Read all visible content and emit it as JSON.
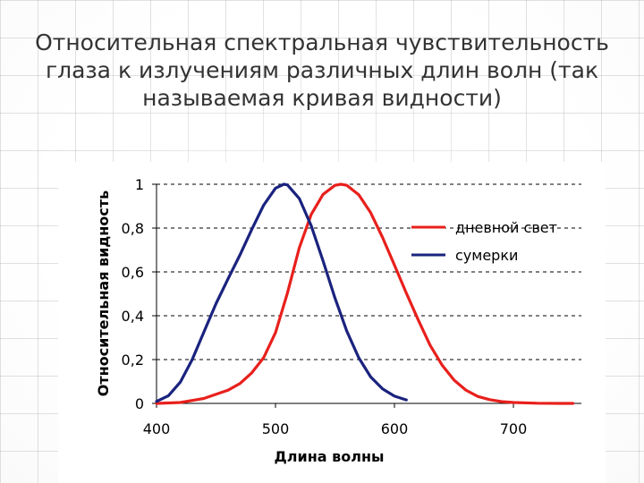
{
  "slide": {
    "title": "Относительная спектральная чувствительность глаза к излучениям различных длин волн (так называемая кривая видности)"
  },
  "chart_data": {
    "type": "line",
    "title": "",
    "xlabel": "Длина волны",
    "ylabel": "Относительная видность",
    "xlim": [
      400,
      750
    ],
    "ylim": [
      0,
      1
    ],
    "x_ticks": [
      400,
      500,
      600,
      700
    ],
    "y_ticks": [
      0,
      0.2,
      0.4,
      0.6,
      0.8,
      1
    ],
    "y_tick_labels": [
      "0",
      "0,2",
      "0,4",
      "0,6",
      "0,8",
      "1"
    ],
    "grid": "horizontal dashed",
    "legend_position": "right",
    "series": [
      {
        "name": "дневной свет",
        "color": "#e8201c",
        "x": [
          400,
          420,
          440,
          460,
          470,
          480,
          490,
          500,
          510,
          520,
          530,
          540,
          550,
          555,
          560,
          570,
          580,
          590,
          600,
          610,
          620,
          630,
          640,
          650,
          660,
          670,
          680,
          690,
          700,
          720,
          740,
          750
        ],
        "y": [
          0,
          0.004,
          0.023,
          0.06,
          0.09,
          0.139,
          0.208,
          0.323,
          0.503,
          0.71,
          0.862,
          0.954,
          0.995,
          1.0,
          0.995,
          0.952,
          0.87,
          0.757,
          0.631,
          0.503,
          0.381,
          0.265,
          0.175,
          0.107,
          0.061,
          0.032,
          0.017,
          0.008,
          0.004,
          0.001,
          0.0002,
          0
        ]
      },
      {
        "name": "сумерки",
        "color": "#1a237e",
        "x": [
          400,
          410,
          420,
          430,
          440,
          450,
          460,
          470,
          480,
          490,
          500,
          507,
          510,
          520,
          530,
          540,
          550,
          560,
          570,
          580,
          590,
          600,
          610
        ],
        "y": [
          0.009,
          0.035,
          0.097,
          0.2,
          0.328,
          0.455,
          0.567,
          0.676,
          0.793,
          0.904,
          0.982,
          1.0,
          0.997,
          0.935,
          0.811,
          0.65,
          0.481,
          0.329,
          0.208,
          0.121,
          0.066,
          0.033,
          0.016
        ]
      }
    ]
  }
}
